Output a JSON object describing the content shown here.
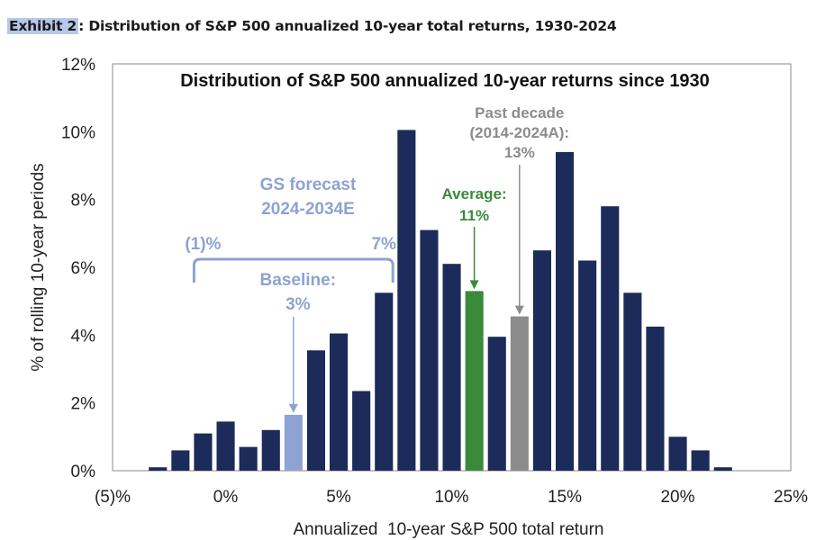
{
  "header": {
    "exhibit_tag": "Exhibit 2",
    "exhibit_rest": ": Distribution of S&P 500 annualized 10-year total returns, 1930-2024"
  },
  "chart_data": {
    "type": "bar",
    "title": "Distribution of S&P 500 annualized 10-year returns since 1930",
    "xlabel": "Annualized  10-year S&P 500 total return",
    "ylabel": "% of rolling 10-year periods",
    "x_unit": "%",
    "xlim": [
      -5,
      25
    ],
    "ylim": [
      0,
      12
    ],
    "x_tick_values": [
      -5,
      0,
      5,
      10,
      15,
      20,
      25
    ],
    "x_tick_labels": [
      "(5)%",
      "0%",
      "5%",
      "10%",
      "15%",
      "20%",
      "25%"
    ],
    "y_tick_values": [
      0,
      2,
      4,
      6,
      8,
      10,
      12
    ],
    "y_tick_labels": [
      "0%",
      "2%",
      "4%",
      "6%",
      "8%",
      "10%",
      "12%"
    ],
    "grid": false,
    "colors": {
      "default": "#1c2b59",
      "baseline": "#8ea3d2",
      "average": "#3a8a3c",
      "past_decade": "#8c8c8c"
    },
    "bars": [
      {
        "x": -3,
        "value": 0.1,
        "highlight": "default"
      },
      {
        "x": -2,
        "value": 0.6,
        "highlight": "default"
      },
      {
        "x": -1,
        "value": 1.1,
        "highlight": "default"
      },
      {
        "x": 0,
        "value": 1.45,
        "highlight": "default"
      },
      {
        "x": 1,
        "value": 0.7,
        "highlight": "default"
      },
      {
        "x": 2,
        "value": 1.2,
        "highlight": "default"
      },
      {
        "x": 3,
        "value": 1.65,
        "highlight": "baseline"
      },
      {
        "x": 4,
        "value": 3.55,
        "highlight": "default"
      },
      {
        "x": 5,
        "value": 4.05,
        "highlight": "default"
      },
      {
        "x": 6,
        "value": 2.35,
        "highlight": "default"
      },
      {
        "x": 7,
        "value": 5.25,
        "highlight": "default"
      },
      {
        "x": 8,
        "value": 10.05,
        "highlight": "default"
      },
      {
        "x": 9,
        "value": 7.1,
        "highlight": "default"
      },
      {
        "x": 10,
        "value": 6.1,
        "highlight": "default"
      },
      {
        "x": 11,
        "value": 5.3,
        "highlight": "average"
      },
      {
        "x": 12,
        "value": 3.95,
        "highlight": "default"
      },
      {
        "x": 13,
        "value": 4.55,
        "highlight": "past_decade"
      },
      {
        "x": 14,
        "value": 6.5,
        "highlight": "default"
      },
      {
        "x": 15,
        "value": 9.4,
        "highlight": "default"
      },
      {
        "x": 16,
        "value": 6.2,
        "highlight": "default"
      },
      {
        "x": 17,
        "value": 7.8,
        "highlight": "default"
      },
      {
        "x": 18,
        "value": 5.25,
        "highlight": "default"
      },
      {
        "x": 19,
        "value": 4.25,
        "highlight": "default"
      },
      {
        "x": 20,
        "value": 1.0,
        "highlight": "default"
      },
      {
        "x": 21,
        "value": 0.6,
        "highlight": "default"
      },
      {
        "x": 22,
        "value": 0.1,
        "highlight": "default"
      }
    ],
    "annotations": {
      "forecast": {
        "title_line1": "GS forecast",
        "title_line2": "2024-2034E",
        "range_low_label": "(1)%",
        "range_high_label": "7%",
        "range_low": -1,
        "range_high": 7,
        "baseline_label_line1": "Baseline:",
        "baseline_label_line2": "3%",
        "baseline_value": 3
      },
      "average": {
        "label_line1": "Average:",
        "label_line2": "11%",
        "value": 11
      },
      "past_decade": {
        "label_line1": "Past decade",
        "label_line2": "(2014-2024A):",
        "label_line3": "13%",
        "value": 13
      }
    }
  }
}
